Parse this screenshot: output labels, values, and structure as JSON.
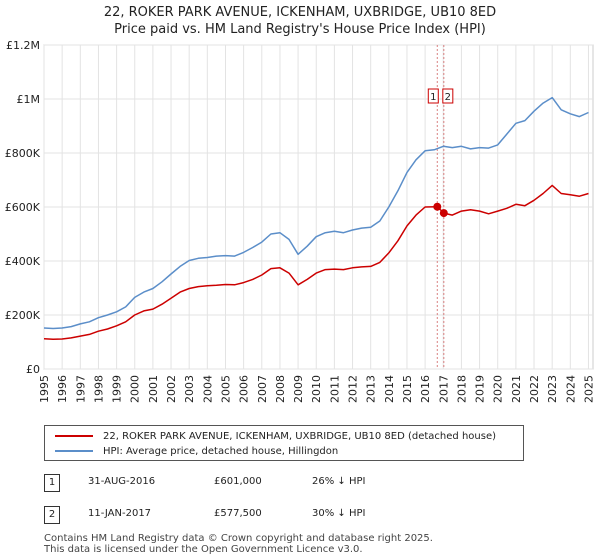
{
  "chart_data": {
    "type": "line",
    "title": "22, ROKER PARK AVENUE, ICKENHAM, UXBRIDGE, UB10 8ED",
    "subtitle": "Price paid vs. HM Land Registry's House Price Index (HPI)",
    "xlabel": "",
    "ylabel": "",
    "xlim": [
      1995,
      2025.25
    ],
    "ylim": [
      0,
      1200000
    ],
    "x_ticks": [
      "1995",
      "1996",
      "1997",
      "1998",
      "1999",
      "2000",
      "2001",
      "2002",
      "2003",
      "2004",
      "2005",
      "2006",
      "2007",
      "2008",
      "2009",
      "2010",
      "2011",
      "2012",
      "2013",
      "2014",
      "2015",
      "2016",
      "2017",
      "2018",
      "2019",
      "2020",
      "2021",
      "2022",
      "2023",
      "2024",
      "2025"
    ],
    "y_ticks": [
      {
        "value": 0,
        "label": "£0"
      },
      {
        "value": 200000,
        "label": "£200K"
      },
      {
        "value": 400000,
        "label": "£400K"
      },
      {
        "value": 600000,
        "label": "£600K"
      },
      {
        "value": 800000,
        "label": "£800K"
      },
      {
        "value": 1000000,
        "label": "£1M"
      },
      {
        "value": 1200000,
        "label": "£1.2M"
      }
    ],
    "grid": true,
    "series": [
      {
        "name": "22, ROKER PARK AVENUE, ICKENHAM, UXBRIDGE, UB10 8ED (detached house)",
        "color": "#cc0000",
        "x": [
          1995,
          1995.5,
          1996,
          1996.5,
          1997,
          1997.5,
          1998,
          1998.5,
          1999,
          1999.5,
          2000,
          2000.5,
          2001,
          2001.5,
          2002,
          2002.5,
          2003,
          2003.5,
          2004,
          2004.5,
          2005,
          2005.5,
          2006,
          2006.5,
          2007,
          2007.5,
          2008,
          2008.5,
          2009,
          2009.5,
          2010,
          2010.5,
          2011,
          2011.5,
          2012,
          2012.5,
          2013,
          2013.5,
          2014,
          2014.5,
          2015,
          2015.5,
          2016,
          2016.67,
          2017.03,
          2017.5,
          2018,
          2018.5,
          2019,
          2019.5,
          2020,
          2020.5,
          2021,
          2021.5,
          2022,
          2022.5,
          2023,
          2023.5,
          2024,
          2024.5,
          2025
        ],
        "y": [
          112000,
          110000,
          111000,
          115000,
          122000,
          128000,
          140000,
          148000,
          160000,
          175000,
          200000,
          215000,
          222000,
          240000,
          262000,
          285000,
          298000,
          305000,
          308000,
          310000,
          313000,
          312000,
          320000,
          332000,
          348000,
          372000,
          375000,
          355000,
          312000,
          332000,
          355000,
          368000,
          370000,
          368000,
          375000,
          378000,
          380000,
          395000,
          430000,
          475000,
          530000,
          570000,
          600000,
          601000,
          577500,
          570000,
          585000,
          590000,
          585000,
          575000,
          585000,
          595000,
          610000,
          605000,
          625000,
          650000,
          680000,
          650000,
          645000,
          640000,
          650000
        ]
      },
      {
        "name": "HPI: Average price, detached house, Hillingdon",
        "color": "#5b8ec9",
        "x": [
          1995,
          1995.5,
          1996,
          1996.5,
          1997,
          1997.5,
          1998,
          1998.5,
          1999,
          1999.5,
          2000,
          2000.5,
          2001,
          2001.5,
          2002,
          2002.5,
          2003,
          2003.5,
          2004,
          2004.5,
          2005,
          2005.5,
          2006,
          2006.5,
          2007,
          2007.5,
          2008,
          2008.5,
          2009,
          2009.5,
          2010,
          2010.5,
          2011,
          2011.5,
          2012,
          2012.5,
          2013,
          2013.5,
          2014,
          2014.5,
          2015,
          2015.5,
          2016,
          2016.5,
          2017,
          2017.5,
          2018,
          2018.5,
          2019,
          2019.5,
          2020,
          2020.5,
          2021,
          2021.5,
          2022,
          2022.5,
          2023,
          2023.5,
          2024,
          2024.5,
          2025
        ],
        "y": [
          152000,
          150000,
          152000,
          157000,
          167000,
          175000,
          190000,
          200000,
          212000,
          230000,
          265000,
          285000,
          298000,
          323000,
          352000,
          380000,
          402000,
          410000,
          413000,
          418000,
          420000,
          418000,
          432000,
          450000,
          470000,
          500000,
          505000,
          480000,
          425000,
          455000,
          490000,
          505000,
          510000,
          505000,
          515000,
          522000,
          525000,
          548000,
          600000,
          660000,
          728000,
          775000,
          808000,
          812000,
          825000,
          820000,
          825000,
          815000,
          820000,
          818000,
          830000,
          870000,
          910000,
          920000,
          955000,
          985000,
          1005000,
          960000,
          945000,
          935000,
          950000
        ]
      }
    ],
    "annotations": [
      {
        "label": "1",
        "x": 2016.67
      },
      {
        "label": "2",
        "x": 2017.03
      }
    ],
    "sale_points": [
      {
        "x": 2016.67,
        "y": 601000
      },
      {
        "x": 2017.03,
        "y": 577500
      }
    ]
  },
  "sales": [
    {
      "num": "1",
      "date": "31-AUG-2016",
      "price": "£601,000",
      "hpi": "26% ↓ HPI"
    },
    {
      "num": "2",
      "date": "11-JAN-2017",
      "price": "£577,500",
      "hpi": "30% ↓ HPI"
    }
  ],
  "footer": {
    "line1": "Contains HM Land Registry data © Crown copyright and database right 2025.",
    "line2": "This data is licensed under the Open Government Licence v3.0."
  }
}
